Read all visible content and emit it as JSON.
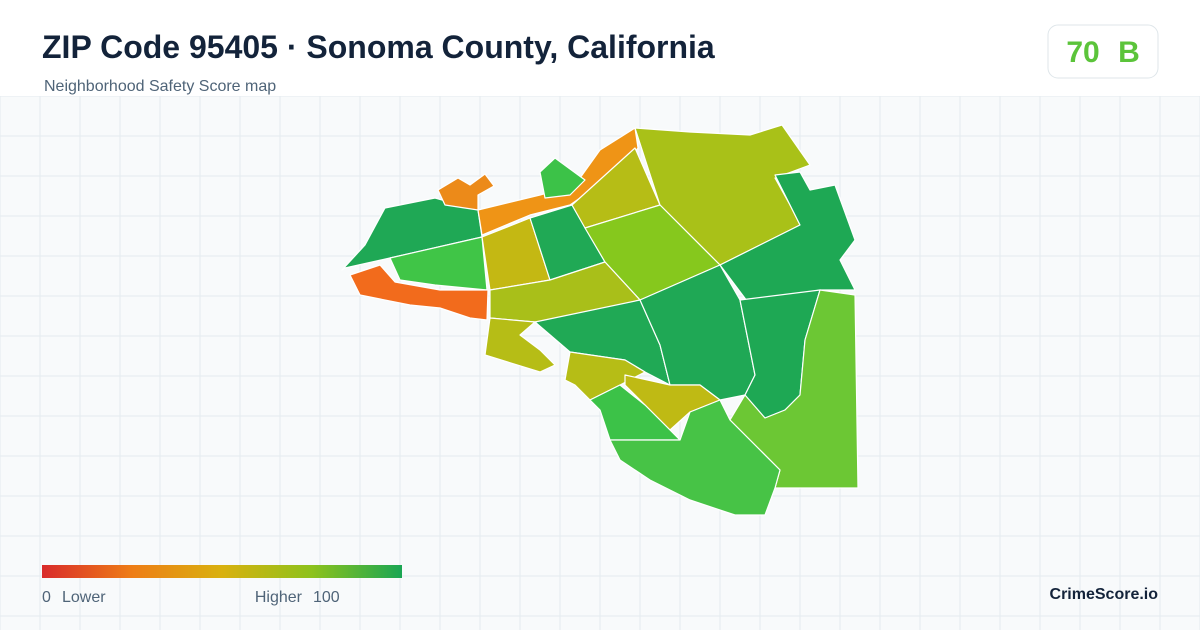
{
  "header": {
    "title": "ZIP Code 95405 · Sonoma County, California",
    "subtitle": "Neighborhood Safety Score map"
  },
  "score": {
    "value": 70,
    "grade": "B"
  },
  "legend": {
    "min": 0,
    "min_label": "Lower",
    "max_label": "Higher",
    "max": 100
  },
  "footer": {
    "brand": "CrimeScore.io"
  }
}
